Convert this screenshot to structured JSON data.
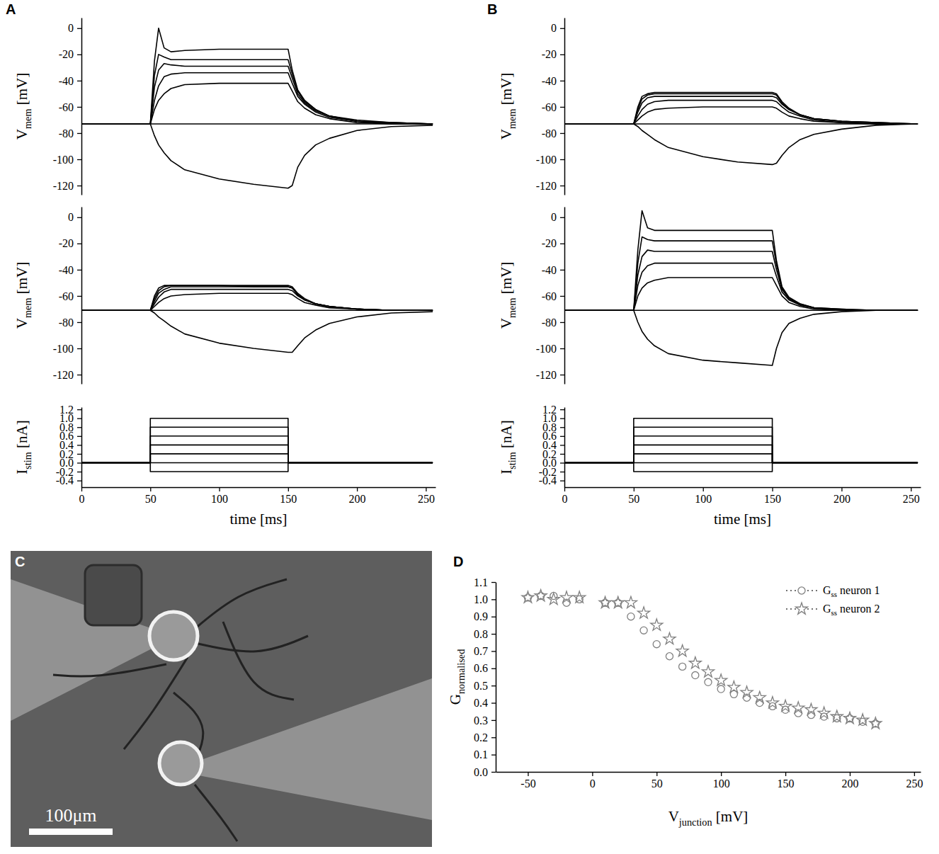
{
  "chart_data": [
    {
      "type": "line",
      "panel": "A",
      "ylabel": "Vmem [mV]",
      "tick_labels": "y",
      "color": "#000000",
      "xlim": [
        0,
        257
      ],
      "ylim": [
        -127,
        8
      ],
      "yticks": [
        0,
        -20,
        -40,
        -60,
        -80,
        -100,
        -120
      ],
      "x": [
        0,
        50,
        53,
        56,
        60,
        65,
        75,
        100,
        125,
        150,
        153,
        157,
        162,
        170,
        180,
        200,
        225,
        255
      ],
      "series": [
        {
          "values": [
            -73,
            -73,
            -82,
            -89,
            -95,
            -101,
            -108,
            -115,
            -119,
            -122,
            -120,
            -106,
            -97,
            -89,
            -84,
            -78,
            -75,
            -74
          ]
        },
        {
          "values": [
            -73,
            -73,
            -73,
            -73,
            -73,
            -73,
            -73,
            -73,
            -73,
            -73,
            -73,
            -73,
            -73,
            -73,
            -73,
            -73,
            -73,
            -73
          ]
        },
        {
          "values": [
            -73,
            -73,
            -62,
            -55,
            -50,
            -46,
            -43,
            -42,
            -42,
            -42,
            -48,
            -56,
            -61,
            -66,
            -69,
            -72,
            -73,
            -73
          ]
        },
        {
          "values": [
            -73,
            -73,
            -55,
            -44,
            -37,
            -35,
            -34,
            -34,
            -34,
            -34,
            -42,
            -52,
            -58,
            -64,
            -68,
            -71,
            -73,
            -73
          ]
        },
        {
          "values": [
            -73,
            -73,
            -45,
            -32,
            -27,
            -28,
            -29,
            -29,
            -29,
            -29,
            -38,
            -50,
            -57,
            -63,
            -67,
            -71,
            -72,
            -73
          ]
        },
        {
          "values": [
            -73,
            -73,
            -36,
            -20,
            -22,
            -24,
            -24,
            -24,
            -24,
            -24,
            -35,
            -48,
            -56,
            -62,
            -67,
            -71,
            -72,
            -73
          ]
        },
        {
          "values": [
            -73,
            -73,
            -25,
            0,
            -15,
            -18,
            -17,
            -16,
            -16,
            -16,
            -32,
            -47,
            -55,
            -62,
            -67,
            -70,
            -72,
            -73
          ]
        }
      ]
    },
    {
      "type": "line",
      "ylabel": "Vmem [mV]",
      "tick_labels": "y",
      "color": "#000000",
      "xlim": [
        0,
        257
      ],
      "ylim": [
        -127,
        8
      ],
      "yticks": [
        0,
        -20,
        -40,
        -60,
        -80,
        -100,
        -120
      ],
      "x": [
        0,
        50,
        53,
        56,
        60,
        65,
        75,
        100,
        125,
        150,
        153,
        157,
        162,
        170,
        180,
        200,
        225,
        255
      ],
      "series": [
        {
          "values": [
            -71,
            -71,
            -73,
            -76,
            -79,
            -83,
            -89,
            -96,
            -100,
            -103,
            -103,
            -98,
            -92,
            -86,
            -81,
            -76,
            -73,
            -72
          ]
        },
        {
          "values": [
            -71,
            -71,
            -71,
            -71,
            -71,
            -71,
            -71,
            -71,
            -71,
            -71,
            -71,
            -71,
            -71,
            -71,
            -71,
            -71,
            -71,
            -71
          ]
        },
        {
          "values": [
            -71,
            -71,
            -68,
            -65,
            -62,
            -60,
            -59,
            -58,
            -58,
            -58,
            -59,
            -62,
            -65,
            -67,
            -69,
            -70,
            -71,
            -71
          ]
        },
        {
          "values": [
            -71,
            -71,
            -66,
            -61,
            -57,
            -55,
            -55,
            -55,
            -55,
            -55,
            -56,
            -60,
            -63,
            -66,
            -68,
            -70,
            -71,
            -71
          ]
        },
        {
          "values": [
            -71,
            -71,
            -64,
            -58,
            -55,
            -53,
            -53,
            -53,
            -53,
            -53,
            -54,
            -59,
            -63,
            -66,
            -68,
            -70,
            -71,
            -71
          ]
        },
        {
          "values": [
            -71,
            -71,
            -62,
            -56,
            -53,
            -52,
            -52,
            -52,
            -53,
            -53,
            -54,
            -59,
            -63,
            -66,
            -68,
            -70,
            -71,
            -71
          ]
        },
        {
          "values": [
            -71,
            -71,
            -60,
            -54,
            -52,
            -52,
            -52,
            -52,
            -52,
            -52,
            -53,
            -58,
            -62,
            -66,
            -68,
            -70,
            -71,
            -71
          ]
        }
      ]
    },
    {
      "type": "line",
      "ylabel": "Istim [nA]",
      "xlabel": "time [ms]",
      "color": "#000000",
      "xlim": [
        0,
        257
      ],
      "ylim": [
        -0.55,
        1.25
      ],
      "xticks": [
        0,
        50,
        100,
        150,
        200,
        250
      ],
      "yticks": [
        -0.4,
        -0.2,
        {
          "value": 0,
          "label": "0.0"
        },
        0.2,
        0.4,
        0.6,
        0.8,
        {
          "value": 1,
          "label": "1.0"
        },
        1.2
      ],
      "x": [
        0,
        50,
        50,
        150,
        150,
        255
      ],
      "series": [
        {
          "values": [
            0,
            0,
            -0.2,
            -0.2,
            0,
            0
          ]
        },
        {
          "values": [
            0,
            0,
            0,
            0,
            0,
            0
          ]
        },
        {
          "values": [
            0,
            0,
            0.2,
            0.2,
            0,
            0
          ]
        },
        {
          "values": [
            0,
            0,
            0.4,
            0.4,
            0,
            0
          ]
        },
        {
          "values": [
            0,
            0,
            0.6,
            0.6,
            0,
            0
          ]
        },
        {
          "values": [
            0,
            0,
            0.8,
            0.8,
            0,
            0
          ]
        },
        {
          "values": [
            0,
            0,
            1,
            1,
            0,
            0
          ]
        }
      ]
    },
    {
      "type": "line",
      "panel": "B",
      "ylabel": "Vmem [mV]",
      "tick_labels": "y",
      "color": "#000000",
      "xlim": [
        0,
        257
      ],
      "ylim": [
        -127,
        8
      ],
      "yticks": [
        0,
        -20,
        -40,
        -60,
        -80,
        -100,
        -120
      ],
      "x": [
        0,
        50,
        53,
        56,
        60,
        65,
        75,
        100,
        125,
        150,
        153,
        157,
        162,
        170,
        180,
        200,
        225,
        255
      ],
      "series": [
        {
          "values": [
            -73,
            -73,
            -75,
            -78,
            -81,
            -85,
            -91,
            -98,
            -102,
            -104,
            -103,
            -97,
            -91,
            -85,
            -81,
            -77,
            -74,
            -73
          ]
        },
        {
          "values": [
            -73,
            -73,
            -73,
            -73,
            -73,
            -73,
            -73,
            -73,
            -73,
            -73,
            -73,
            -73,
            -73,
            -73,
            -73,
            -73,
            -73,
            -73
          ]
        },
        {
          "values": [
            -73,
            -73,
            -70,
            -67,
            -64,
            -62,
            -61,
            -60,
            -60,
            -60,
            -61,
            -64,
            -67,
            -69,
            -71,
            -72,
            -73,
            -73
          ]
        },
        {
          "values": [
            -73,
            -73,
            -67,
            -62,
            -58,
            -56,
            -55,
            -55,
            -55,
            -55,
            -56,
            -60,
            -64,
            -67,
            -70,
            -72,
            -73,
            -73
          ]
        },
        {
          "values": [
            -73,
            -73,
            -64,
            -57,
            -53,
            -52,
            -52,
            -52,
            -52,
            -52,
            -53,
            -58,
            -62,
            -66,
            -69,
            -71,
            -72,
            -73
          ]
        },
        {
          "values": [
            -73,
            -73,
            -62,
            -54,
            -51,
            -50,
            -50,
            -50,
            -50,
            -50,
            -51,
            -57,
            -62,
            -66,
            -69,
            -71,
            -72,
            -73
          ]
        },
        {
          "values": [
            -73,
            -73,
            -60,
            -52,
            -50,
            -49,
            -49,
            -49,
            -49,
            -49,
            -50,
            -56,
            -61,
            -66,
            -69,
            -71,
            -72,
            -73
          ]
        }
      ]
    },
    {
      "type": "line",
      "ylabel": "Vmem [mV]",
      "tick_labels": "y",
      "color": "#000000",
      "xlim": [
        0,
        257
      ],
      "ylim": [
        -127,
        8
      ],
      "yticks": [
        0,
        -20,
        -40,
        -60,
        -80,
        -100,
        -120
      ],
      "x": [
        0,
        50,
        53,
        56,
        60,
        65,
        75,
        100,
        125,
        150,
        153,
        157,
        162,
        170,
        180,
        200,
        225,
        255
      ],
      "series": [
        {
          "values": [
            -71,
            -71,
            -80,
            -87,
            -93,
            -98,
            -104,
            -109,
            -111,
            -113,
            -100,
            -88,
            -81,
            -77,
            -74,
            -72,
            -71,
            -71
          ]
        },
        {
          "values": [
            -71,
            -71,
            -71,
            -71,
            -71,
            -71,
            -71,
            -71,
            -71,
            -71,
            -71,
            -71,
            -71,
            -71,
            -71,
            -71,
            -71,
            -71
          ]
        },
        {
          "values": [
            -71,
            -71,
            -60,
            -54,
            -50,
            -48,
            -46,
            -46,
            -46,
            -46,
            -52,
            -60,
            -65,
            -68,
            -70,
            -71,
            -71,
            -71
          ]
        },
        {
          "values": [
            -71,
            -71,
            -52,
            -42,
            -37,
            -35,
            -35,
            -35,
            -35,
            -35,
            -45,
            -57,
            -63,
            -67,
            -69,
            -71,
            -71,
            -71
          ]
        },
        {
          "values": [
            -71,
            -71,
            -44,
            -30,
            -25,
            -26,
            -26,
            -26,
            -26,
            -26,
            -40,
            -55,
            -62,
            -67,
            -69,
            -71,
            -71,
            -71
          ]
        },
        {
          "values": [
            -71,
            -71,
            -35,
            -15,
            -17,
            -18,
            -18,
            -18,
            -18,
            -18,
            -36,
            -54,
            -62,
            -66,
            -69,
            -70,
            -71,
            -71
          ]
        },
        {
          "values": [
            -71,
            -71,
            -25,
            5,
            -8,
            -10,
            -10,
            -10,
            -10,
            -10,
            -33,
            -53,
            -61,
            -66,
            -69,
            -70,
            -71,
            -71
          ]
        }
      ]
    },
    {
      "type": "line",
      "ylabel": "Istim [nA]",
      "xlabel": "time [ms]",
      "color": "#000000",
      "xlim": [
        0,
        257
      ],
      "ylim": [
        -0.55,
        1.25
      ],
      "xticks": [
        0,
        50,
        100,
        150,
        200,
        250
      ],
      "yticks": [
        -0.4,
        -0.2,
        {
          "value": 0,
          "label": "0.0"
        },
        0.2,
        0.4,
        0.6,
        0.8,
        {
          "value": 1,
          "label": "1.0"
        },
        1.2
      ],
      "x": [
        0,
        50,
        50,
        150,
        150,
        255
      ],
      "series": [
        {
          "values": [
            0,
            0,
            -0.2,
            -0.2,
            0,
            0
          ]
        },
        {
          "values": [
            0,
            0,
            0,
            0,
            0,
            0
          ]
        },
        {
          "values": [
            0,
            0,
            0.2,
            0.2,
            0,
            0
          ]
        },
        {
          "values": [
            0,
            0,
            0.4,
            0.4,
            0,
            0
          ]
        },
        {
          "values": [
            0,
            0,
            0.6,
            0.6,
            0,
            0
          ]
        },
        {
          "values": [
            0,
            0,
            0.8,
            0.8,
            0,
            0
          ]
        },
        {
          "values": [
            0,
            0,
            1,
            1,
            0,
            0
          ]
        }
      ]
    },
    {
      "type": "image",
      "panel": "C",
      "annotations": [
        "100μm"
      ]
    },
    {
      "type": "scatter",
      "panel": "D",
      "xlabel": "Vjunction [mV]",
      "ylabel": "Gnormalised",
      "legend": "top-right",
      "xlim": [
        -75,
        255
      ],
      "ylim": [
        0,
        1.1
      ],
      "xticks": [
        -50,
        0,
        50,
        100,
        150,
        200,
        250
      ],
      "yticks": [
        {
          "value": 0,
          "label": "0.0"
        },
        0.1,
        0.2,
        0.3,
        0.4,
        0.5,
        0.6,
        0.7,
        0.8,
        0.9,
        {
          "value": 1,
          "label": "1.0"
        },
        1.1
      ],
      "x": [
        -50,
        -40,
        -30,
        -20,
        -10,
        10,
        20,
        30,
        40,
        50,
        60,
        70,
        80,
        90,
        100,
        110,
        120,
        130,
        140,
        150,
        160,
        170,
        180,
        190,
        200,
        210,
        220
      ],
      "series": [
        {
          "name": "Gss neuron 1",
          "marker": "circle",
          "color": "#808080",
          "values": [
            1.01,
            1.02,
            1.02,
            0.98,
            1.0,
            0.98,
            0.98,
            0.9,
            0.82,
            0.74,
            0.67,
            0.61,
            0.56,
            0.52,
            0.48,
            0.45,
            0.43,
            0.4,
            0.38,
            0.36,
            0.34,
            0.33,
            0.32,
            0.31,
            0.31,
            0.29,
            0.28
          ]
        },
        {
          "name": "Gss neuron 2",
          "marker": "star",
          "color": "#808080",
          "values": [
            1.01,
            1.02,
            1.0,
            1.01,
            1.01,
            0.98,
            0.98,
            0.98,
            0.92,
            0.85,
            0.77,
            0.7,
            0.63,
            0.58,
            0.53,
            0.49,
            0.46,
            0.43,
            0.4,
            0.38,
            0.37,
            0.36,
            0.34,
            0.32,
            0.31,
            0.3,
            0.28
          ]
        }
      ]
    }
  ]
}
